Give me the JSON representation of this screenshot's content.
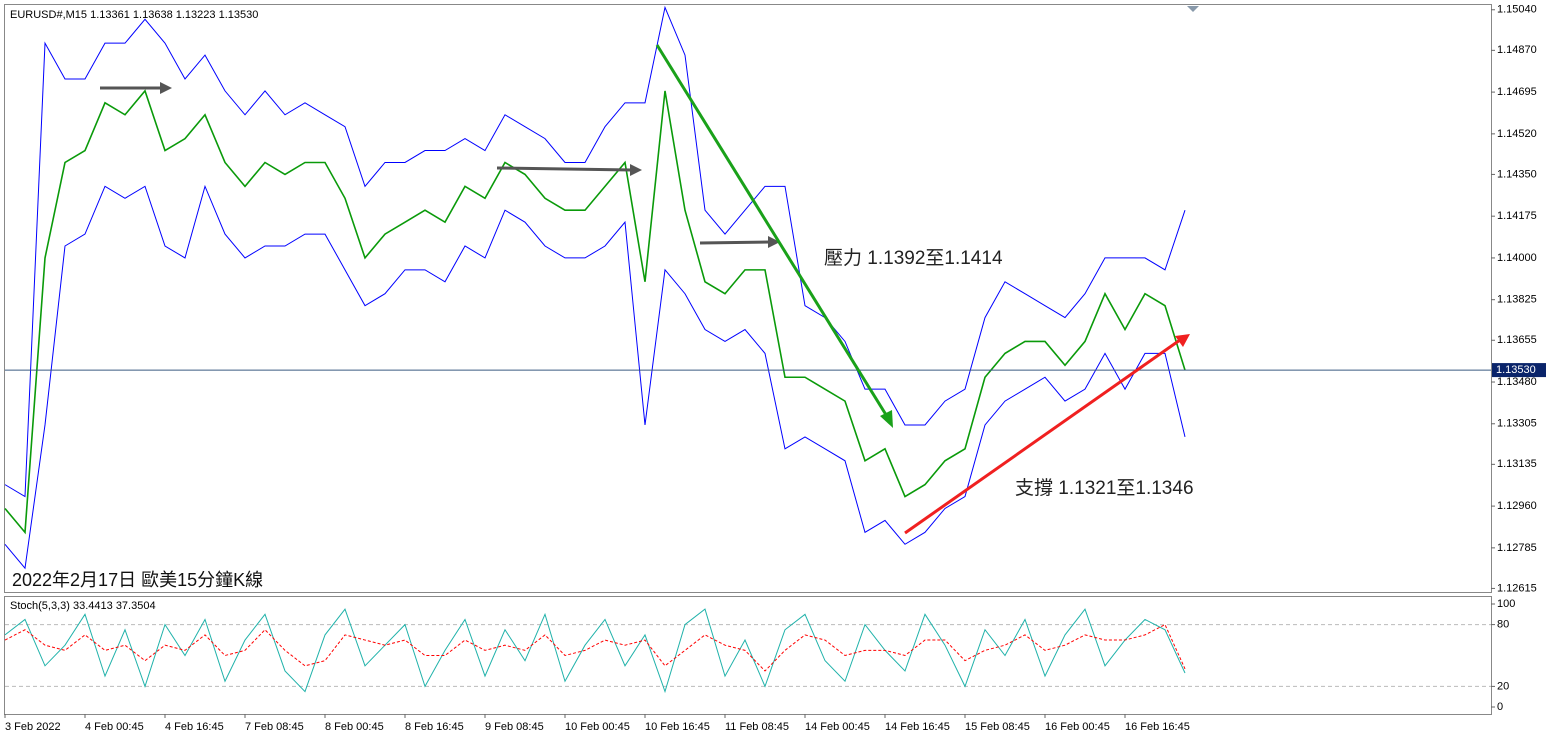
{
  "chart_data": [
    {
      "type": "line",
      "symbol": "EURUSD#,M15",
      "ohlc": [
        1.13361,
        1.13638,
        1.13223,
        {
          "value": 1.1353,
          "label": "1.13530"
        }
      ],
      "annotations": [
        "壓力 1.1392至1.1414",
        "支撐 1.1321至1.1346",
        "2022年2月17日 歐美15分鐘K線"
      ],
      "categories": [
        "3 Feb 2022",
        null,
        null,
        null,
        "4 Feb 00:45",
        null,
        null,
        null,
        "4 Feb 16:45",
        null,
        null,
        null,
        "7 Feb 08:45",
        null,
        null,
        null,
        "8 Feb 00:45",
        null,
        null,
        null,
        "8 Feb 16:45",
        null,
        null,
        null,
        "9 Feb 08:45",
        null,
        null,
        null,
        "10 Feb 00:45",
        null,
        null,
        null,
        "10 Feb 16:45",
        null,
        null,
        null,
        "11 Feb 08:45",
        null,
        null,
        null,
        "14 Feb 00:45",
        null,
        null,
        null,
        "14 Feb 16:45",
        null,
        null,
        null,
        "15 Feb 08:45",
        null,
        null,
        null,
        "16 Feb 00:45",
        null,
        null,
        null,
        "16 Feb 16:45",
        null,
        null,
        null
      ],
      "series": [
        {
          "color": "#0a9a0a",
          "values": [
            1.1295,
            1.1285,
            1.14,
            1.144,
            1.1445,
            1.1465,
            1.146,
            1.147,
            1.1445,
            1.145,
            1.146,
            1.144,
            1.143,
            1.144,
            1.1435,
            1.144,
            1.144,
            1.1425,
            1.14,
            1.141,
            1.1415,
            1.142,
            1.1415,
            1.143,
            1.1425,
            1.144,
            1.1435,
            1.1425,
            1.142,
            1.142,
            1.143,
            1.144,
            1.139,
            1.147,
            1.142,
            1.139,
            1.1385,
            1.1395,
            1.1395,
            1.135,
            1.135,
            1.1345,
            1.134,
            1.1315,
            1.132,
            1.13,
            1.1305,
            1.1315,
            1.132,
            1.135,
            1.136,
            1.1365,
            1.1365,
            1.1355,
            1.1365,
            1.1385,
            1.137,
            1.1385,
            1.138,
            1.1353
          ]
        },
        {
          "color": "#0000ff",
          "values": [
            1.1305,
            1.13,
            1.149,
            1.1475,
            1.1475,
            1.149,
            1.149,
            1.15,
            1.149,
            1.1475,
            1.1485,
            1.147,
            1.146,
            1.147,
            1.146,
            1.1465,
            1.146,
            1.1455,
            1.143,
            1.144,
            1.144,
            1.1445,
            1.1445,
            1.145,
            1.1445,
            1.146,
            1.1455,
            1.145,
            1.144,
            1.144,
            1.1455,
            1.1465,
            1.1465,
            1.1505,
            1.1485,
            1.142,
            1.141,
            1.142,
            1.143,
            1.143,
            1.138,
            1.1375,
            1.1365,
            1.1345,
            1.1345,
            1.133,
            1.133,
            1.134,
            1.1345,
            1.1375,
            1.139,
            1.1385,
            1.138,
            1.1375,
            1.1385,
            1.14,
            1.14,
            1.14,
            1.1395,
            1.142
          ]
        },
        {
          "color": "#0000ff",
          "values": [
            1.128,
            1.127,
            1.133,
            1.1405,
            1.141,
            1.143,
            1.1425,
            1.143,
            1.1405,
            1.14,
            1.143,
            1.141,
            1.14,
            1.1405,
            1.1405,
            1.141,
            1.141,
            1.1395,
            1.138,
            1.1385,
            1.1395,
            1.1395,
            1.139,
            1.1405,
            1.14,
            1.142,
            1.1415,
            1.1405,
            1.14,
            1.14,
            1.1405,
            1.1415,
            1.133,
            1.1395,
            1.1385,
            1.137,
            1.1365,
            1.137,
            1.136,
            1.132,
            1.1325,
            1.132,
            1.1315,
            1.1285,
            1.129,
            1.128,
            1.1285,
            1.1295,
            1.13,
            1.133,
            1.134,
            1.1345,
            1.135,
            1.134,
            1.1345,
            1.136,
            1.1345,
            1.136,
            1.136,
            1.1325
          ]
        }
      ],
      "ylim": [
        1.126,
        1.1506
      ],
      "yticks": [
        {
          "value": 1.1504,
          "label": "1.15040"
        },
        {
          "value": 1.1487,
          "label": "1.14870"
        },
        1.14695,
        {
          "value": 1.1452,
          "label": "1.14520"
        },
        {
          "value": 1.1435,
          "label": "1.14350"
        },
        1.14175,
        {
          "value": 1.14,
          "label": "1.14000"
        },
        1.13825,
        1.13655,
        {
          "value": 1.1348,
          "label": "1.13480"
        },
        1.13305,
        1.13135,
        {
          "value": 1.1296,
          "label": "1.12960"
        },
        1.12785,
        1.12615
      ],
      "last_price": {
        "value": 1.1353,
        "label": "1.13530"
      }
    },
    {
      "type": "line",
      "title": "Stoch(5,3,3)",
      "readouts": [
        33.4413,
        37.3504
      ],
      "series": [
        {
          "color": "#20b2aa",
          "values": [
            70,
            85,
            40,
            60,
            90,
            30,
            75,
            20,
            80,
            50,
            85,
            25,
            65,
            90,
            35,
            15,
            70,
            95,
            40,
            60,
            80,
            20,
            55,
            85,
            30,
            75,
            45,
            90,
            25,
            60,
            85,
            40,
            70,
            15,
            80,
            95,
            30,
            65,
            20,
            75,
            90,
            45,
            25,
            80,
            55,
            35,
            90,
            60,
            20,
            75,
            50,
            85,
            30,
            70,
            95,
            40,
            65,
            85,
            75,
            33
          ]
        },
        {
          "color": "#ff0000",
          "dashed": true,
          "values": [
            65,
            75,
            60,
            55,
            70,
            55,
            60,
            45,
            60,
            55,
            70,
            50,
            55,
            75,
            55,
            40,
            45,
            70,
            65,
            60,
            65,
            50,
            50,
            65,
            55,
            60,
            55,
            70,
            50,
            55,
            65,
            60,
            65,
            40,
            55,
            70,
            60,
            55,
            35,
            55,
            70,
            65,
            50,
            55,
            55,
            50,
            65,
            65,
            45,
            55,
            60,
            70,
            55,
            60,
            70,
            65,
            65,
            70,
            80,
            37
          ]
        }
      ],
      "ylim": [
        0,
        100
      ],
      "yticks": [
        0,
        20,
        80,
        100
      ]
    }
  ]
}
